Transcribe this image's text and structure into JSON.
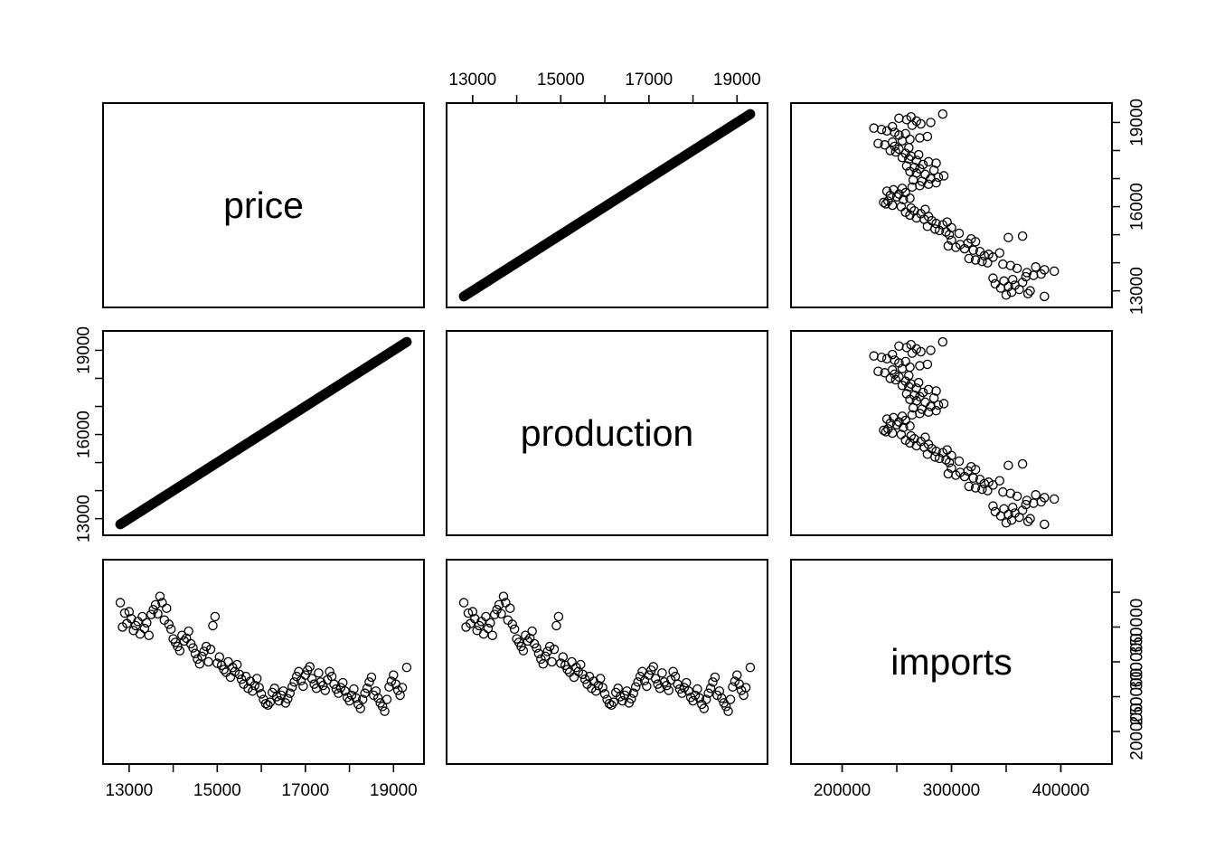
{
  "chart_data": {
    "type": "scatter",
    "title": "",
    "variables": [
      "price",
      "production",
      "imports"
    ],
    "ranges": {
      "price": [
        12700,
        19400
      ],
      "production": [
        12700,
        19400
      ],
      "imports": [
        165000,
        435000
      ]
    },
    "ticks": {
      "price": [
        13000,
        15000,
        17000,
        19000
      ],
      "production": [
        13000,
        15000,
        17000,
        19000
      ],
      "imports_x": [
        200000,
        300000,
        400000
      ],
      "imports_y": [
        200000,
        250000,
        300000,
        350000,
        400000
      ]
    },
    "tick_labels": {
      "price_bottom": [
        "13000",
        "15000",
        "17000",
        "19000"
      ],
      "production_top": [
        "13000",
        "15000",
        "17000",
        "19000"
      ],
      "imports_bottom": [
        "200000",
        "300000",
        "400000"
      ],
      "price_left": [
        "13000",
        "16000",
        "19000"
      ],
      "production_right": [
        "13000",
        "16000",
        "19000"
      ],
      "imports_right": [
        "200000",
        "250000",
        "300000",
        "350000"
      ]
    },
    "line_segment": {
      "from": [
        12800,
        12800
      ],
      "to": [
        19300,
        19300
      ]
    },
    "points": [
      [
        12800,
        385000
      ],
      [
        12850,
        350000
      ],
      [
        12900,
        370000
      ],
      [
        12950,
        355000
      ],
      [
        13000,
        372000
      ],
      [
        13050,
        362000
      ],
      [
        13100,
        345000
      ],
      [
        13150,
        352000
      ],
      [
        13200,
        358000
      ],
      [
        13250,
        340000
      ],
      [
        13300,
        365000
      ],
      [
        13350,
        348000
      ],
      [
        13400,
        356000
      ],
      [
        13450,
        338000
      ],
      [
        13500,
        368000
      ],
      [
        13550,
        375000
      ],
      [
        13600,
        382000
      ],
      [
        13650,
        369000
      ],
      [
        13700,
        394000
      ],
      [
        13750,
        385000
      ],
      [
        13800,
        360000
      ],
      [
        13850,
        377000
      ],
      [
        13900,
        354000
      ],
      [
        13950,
        347000
      ],
      [
        14000,
        333000
      ],
      [
        14050,
        328000
      ],
      [
        14100,
        322000
      ],
      [
        14150,
        316000
      ],
      [
        14200,
        338000
      ],
      [
        14250,
        330000
      ],
      [
        14300,
        334000
      ],
      [
        14350,
        344000
      ],
      [
        14400,
        326000
      ],
      [
        14450,
        320000
      ],
      [
        14500,
        312000
      ],
      [
        14550,
        304000
      ],
      [
        14600,
        297000
      ],
      [
        14650,
        308000
      ],
      [
        14700,
        315000
      ],
      [
        14750,
        322000
      ],
      [
        14800,
        300000
      ],
      [
        14850,
        318000
      ],
      [
        14900,
        352000
      ],
      [
        14950,
        365000
      ],
      [
        15000,
        298000
      ],
      [
        15050,
        307000
      ],
      [
        15100,
        295000
      ],
      [
        15150,
        289000
      ],
      [
        15200,
        285000
      ],
      [
        15250,
        300000
      ],
      [
        15300,
        278000
      ],
      [
        15350,
        292000
      ],
      [
        15400,
        286000
      ],
      [
        15450,
        296000
      ],
      [
        15500,
        282000
      ],
      [
        15550,
        275000
      ],
      [
        15600,
        268000
      ],
      [
        15650,
        279000
      ],
      [
        15700,
        262000
      ],
      [
        15750,
        272000
      ],
      [
        15800,
        258000
      ],
      [
        15850,
        266000
      ],
      [
        15900,
        276000
      ],
      [
        15950,
        263000
      ],
      [
        16000,
        254000
      ],
      [
        16050,
        246000
      ],
      [
        16100,
        240000
      ],
      [
        16150,
        238000
      ],
      [
        16200,
        242000
      ],
      [
        16250,
        256000
      ],
      [
        16300,
        262000
      ],
      [
        16350,
        250000
      ],
      [
        16400,
        244000
      ],
      [
        16450,
        252000
      ],
      [
        16500,
        258000
      ],
      [
        16550,
        241000
      ],
      [
        16600,
        247000
      ],
      [
        16650,
        255000
      ],
      [
        16700,
        264000
      ],
      [
        16750,
        271000
      ],
      [
        16800,
        279000
      ],
      [
        16850,
        286000
      ],
      [
        16900,
        273000
      ],
      [
        16950,
        265000
      ],
      [
        17000,
        281000
      ],
      [
        17050,
        288000
      ],
      [
        17100,
        293000
      ],
      [
        17150,
        276000
      ],
      [
        17200,
        268000
      ],
      [
        17250,
        262000
      ],
      [
        17300,
        284000
      ],
      [
        17350,
        271000
      ],
      [
        17400,
        266000
      ],
      [
        17450,
        259000
      ],
      [
        17500,
        274000
      ],
      [
        17550,
        286000
      ],
      [
        17600,
        279000
      ],
      [
        17650,
        268000
      ],
      [
        17700,
        261000
      ],
      [
        17750,
        255000
      ],
      [
        17800,
        263000
      ],
      [
        17850,
        270000
      ],
      [
        17900,
        258000
      ],
      [
        17950,
        249000
      ],
      [
        18000,
        244000
      ],
      [
        18050,
        252000
      ],
      [
        18100,
        261000
      ],
      [
        18150,
        248000
      ],
      [
        18200,
        239000
      ],
      [
        18250,
        233000
      ],
      [
        18300,
        246000
      ],
      [
        18350,
        255000
      ],
      [
        18400,
        262000
      ],
      [
        18450,
        271000
      ],
      [
        18500,
        278000
      ],
      [
        18550,
        252000
      ],
      [
        18600,
        258000
      ],
      [
        18650,
        248000
      ],
      [
        18700,
        241000
      ],
      [
        18750,
        236000
      ],
      [
        18800,
        229000
      ],
      [
        18850,
        246000
      ],
      [
        18900,
        264000
      ],
      [
        18950,
        272000
      ],
      [
        19000,
        281000
      ],
      [
        19050,
        268000
      ],
      [
        19100,
        259000
      ],
      [
        19150,
        252000
      ],
      [
        19200,
        263000
      ],
      [
        19300,
        292000
      ]
    ]
  }
}
